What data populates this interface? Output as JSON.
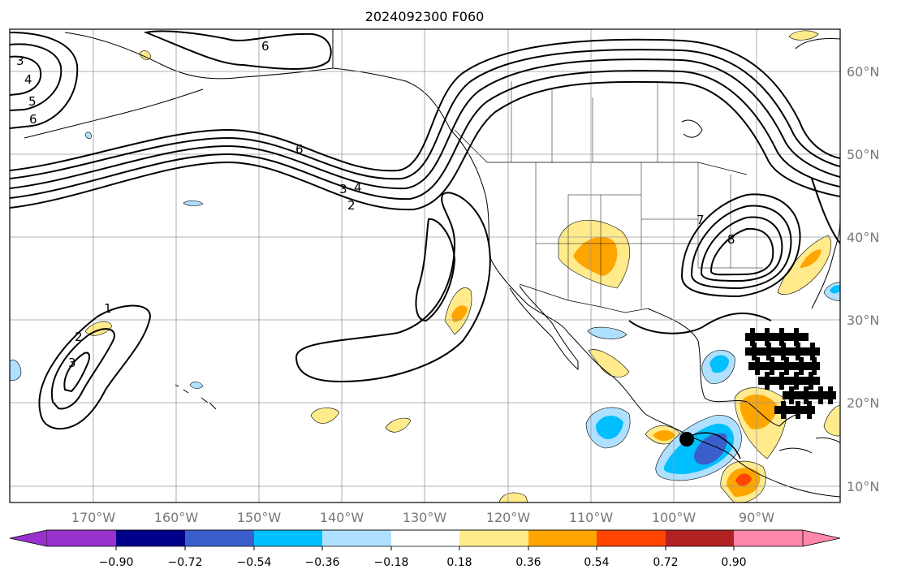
{
  "title": "2024092300 F060",
  "map": {
    "lon_range": [
      -180,
      -80
    ],
    "lat_range": [
      8,
      66
    ],
    "longitude_ticks": [
      "170°W",
      "160°W",
      "150°W",
      "140°W",
      "130°W",
      "120°W",
      "110°W",
      "100°W",
      "90°W"
    ],
    "latitude_ticks": [
      "60°N",
      "50°N",
      "40°N",
      "30°N",
      "20°N",
      "10°N"
    ],
    "contour_labels": [
      "6",
      "3",
      "4",
      "5",
      "6",
      "6",
      "3",
      "4",
      "2",
      "1",
      "2",
      "3",
      "7",
      "8"
    ],
    "colors": {
      "land_outline": "#000000",
      "gridline": "#999999",
      "contour": "#000000"
    }
  },
  "colorbar": {
    "tick_labels": [
      "−0.90",
      "−0.72",
      "−0.54",
      "−0.36",
      "−0.18",
      "0.18",
      "0.36",
      "0.54",
      "0.72",
      "0.90"
    ],
    "colors": [
      "#9932cc",
      "#00008b",
      "#3a5fcd",
      "#00bfff",
      "#b0e0ff",
      "#ffffff",
      "#ffea8c",
      "#ffa500",
      "#ff4500",
      "#b22222",
      "#ff88aa"
    ],
    "extend": "both"
  }
}
